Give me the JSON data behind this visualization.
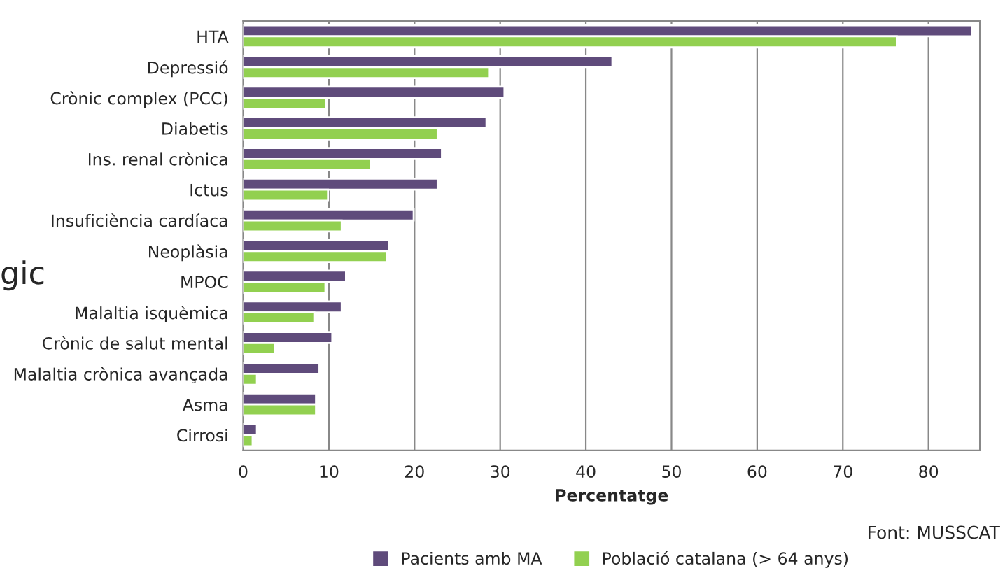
{
  "chart_data": {
    "type": "bar",
    "orientation": "horizontal",
    "xlabel": "Percentatge",
    "categories": [
      "HTA",
      "Depressió",
      "Crònic complex (PCC)",
      "Diabetis",
      "Ins. renal crònica",
      "Ictus",
      "Insuficiència cardíaca",
      "Neoplàsia",
      "MPOC",
      "Malaltia isquèmica",
      "Crònic de salut mental",
      "Malaltia crònica avançada",
      "Asma",
      "Cirrosi"
    ],
    "series": [
      {
        "name": "Pacients amb MA",
        "color": "#5f4b7b",
        "values": [
          85.1,
          43.1,
          30.5,
          28.4,
          23.2,
          22.7,
          19.9,
          17.0,
          12.0,
          11.5,
          10.4,
          8.9,
          8.5,
          1.6
        ]
      },
      {
        "name": "Població catalana (> 64 anys)",
        "color": "#92d050",
        "values": [
          76.3,
          28.7,
          9.7,
          22.7,
          14.9,
          9.9,
          11.5,
          16.8,
          9.6,
          8.3,
          3.7,
          1.6,
          8.5,
          1.1
        ]
      }
    ],
    "xlim": [
      0,
      86
    ],
    "xticks": [
      0,
      10,
      20,
      30,
      40,
      50,
      60,
      70,
      80
    ],
    "grid": "x",
    "legend": "bottom",
    "annotations": [
      "Font: MUSSCAT",
      "gic"
    ]
  }
}
